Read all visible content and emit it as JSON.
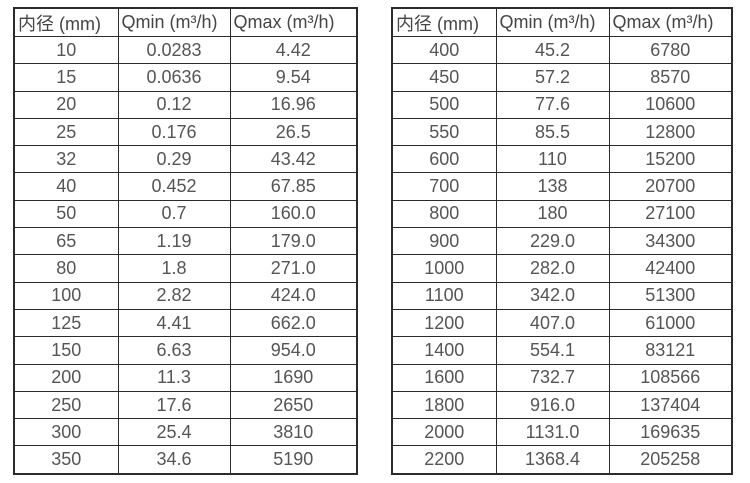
{
  "colors": {
    "border": "#2b2b2b",
    "text": "#555555",
    "header_text": "#454545",
    "background": "#ffffff"
  },
  "tables": [
    {
      "headers": [
        "内径 (mm)",
        "Qmin (m³/h)",
        "Qmax (m³/h)"
      ],
      "rows": [
        [
          "10",
          "0.0283",
          "4.42"
        ],
        [
          "15",
          "0.0636",
          "9.54"
        ],
        [
          "20",
          "0.12",
          "16.96"
        ],
        [
          "25",
          "0.176",
          "26.5"
        ],
        [
          "32",
          "0.29",
          "43.42"
        ],
        [
          "40",
          "0.452",
          "67.85"
        ],
        [
          "50",
          "0.7",
          "160.0"
        ],
        [
          "65",
          "1.19",
          "179.0"
        ],
        [
          "80",
          "1.8",
          "271.0"
        ],
        [
          "100",
          "2.82",
          "424.0"
        ],
        [
          "125",
          "4.41",
          "662.0"
        ],
        [
          "150",
          "6.63",
          "954.0"
        ],
        [
          "200",
          "11.3",
          "1690"
        ],
        [
          "250",
          "17.6",
          "2650"
        ],
        [
          "300",
          "25.4",
          "3810"
        ],
        [
          "350",
          "34.6",
          "5190"
        ]
      ]
    },
    {
      "headers": [
        "内径 (mm)",
        "Qmin (m³/h)",
        "Qmax (m³/h)"
      ],
      "rows": [
        [
          "400",
          "45.2",
          "6780"
        ],
        [
          "450",
          "57.2",
          "8570"
        ],
        [
          "500",
          "77.6",
          "10600"
        ],
        [
          "550",
          "85.5",
          "12800"
        ],
        [
          "600",
          "110",
          "15200"
        ],
        [
          "700",
          "138",
          "20700"
        ],
        [
          "800",
          "180",
          "27100"
        ],
        [
          "900",
          "229.0",
          "34300"
        ],
        [
          "1000",
          "282.0",
          "42400"
        ],
        [
          "1100",
          "342.0",
          "51300"
        ],
        [
          "1200",
          "407.0",
          "61000"
        ],
        [
          "1400",
          "554.1",
          "83121"
        ],
        [
          "1600",
          "732.7",
          "108566"
        ],
        [
          "1800",
          "916.0",
          "137404"
        ],
        [
          "2000",
          "1131.0",
          "169635"
        ],
        [
          "2200",
          "1368.4",
          "205258"
        ]
      ]
    }
  ]
}
